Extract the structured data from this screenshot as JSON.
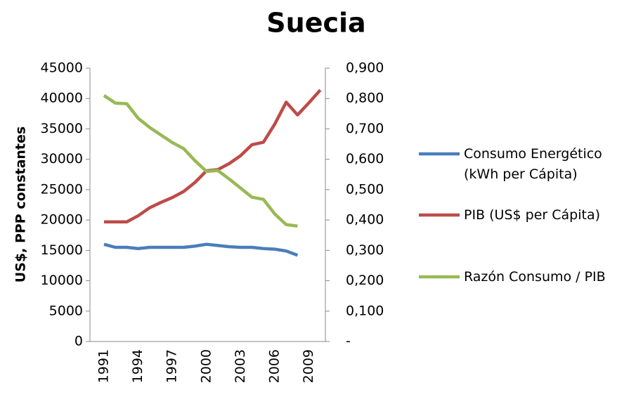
{
  "chart_data": {
    "type": "line",
    "title": "Suecia",
    "y_axis_label": "US$, PPP constantes",
    "categories": [
      "1991",
      null,
      null,
      "1994",
      null,
      null,
      "1997",
      null,
      null,
      "2000",
      null,
      null,
      "2003",
      null,
      null,
      "2006",
      null,
      null,
      "2009",
      null
    ],
    "series": [
      {
        "name": "Consumo Energético (kWh per Cápita)",
        "color": "#4a7ebb",
        "values": [
          16000,
          15500,
          15500,
          15300,
          15500,
          15500,
          15500,
          15500,
          15700,
          16000,
          15800,
          15600,
          15500,
          15500,
          15300,
          15200,
          14900,
          14200,
          null,
          null
        ]
      },
      {
        "name": "PIB (US$ per Cápita)",
        "color": "#be4b48",
        "values": [
          19700,
          19700,
          19700,
          20700,
          22000,
          22900,
          23700,
          24700,
          26200,
          28100,
          28300,
          29300,
          30600,
          32400,
          32800,
          35800,
          39400,
          37300,
          39300,
          41400
        ]
      },
      {
        "name": "Razón Consumo / PIB",
        "color": "#98b954",
        "axis": "y2",
        "values": [
          0.81,
          0.785,
          0.783,
          0.735,
          0.705,
          0.68,
          0.655,
          0.635,
          0.595,
          0.56,
          0.563,
          0.535,
          0.505,
          0.475,
          0.468,
          0.42,
          0.385,
          0.38,
          null,
          null
        ]
      }
    ],
    "ylim": [
      0,
      45000
    ],
    "yticks": [
      0,
      5000,
      10000,
      15000,
      20000,
      25000,
      30000,
      35000,
      40000,
      45000
    ],
    "y2lim": [
      0,
      0.9
    ],
    "y2ticks": [
      {
        "value": 0,
        "label": "-"
      },
      {
        "value": 0.1,
        "label": "0,100"
      },
      {
        "value": 0.2,
        "label": "0,200"
      },
      {
        "value": 0.3,
        "label": "0,300"
      },
      {
        "value": 0.4,
        "label": "0,400"
      },
      {
        "value": 0.5,
        "label": "0,500"
      },
      {
        "value": 0.6,
        "label": "0,600"
      },
      {
        "value": 0.7,
        "label": "0,700"
      },
      {
        "value": 0.8,
        "label": "0,800"
      },
      {
        "value": 0.9,
        "label": "0,900"
      }
    ],
    "legend": "right"
  }
}
